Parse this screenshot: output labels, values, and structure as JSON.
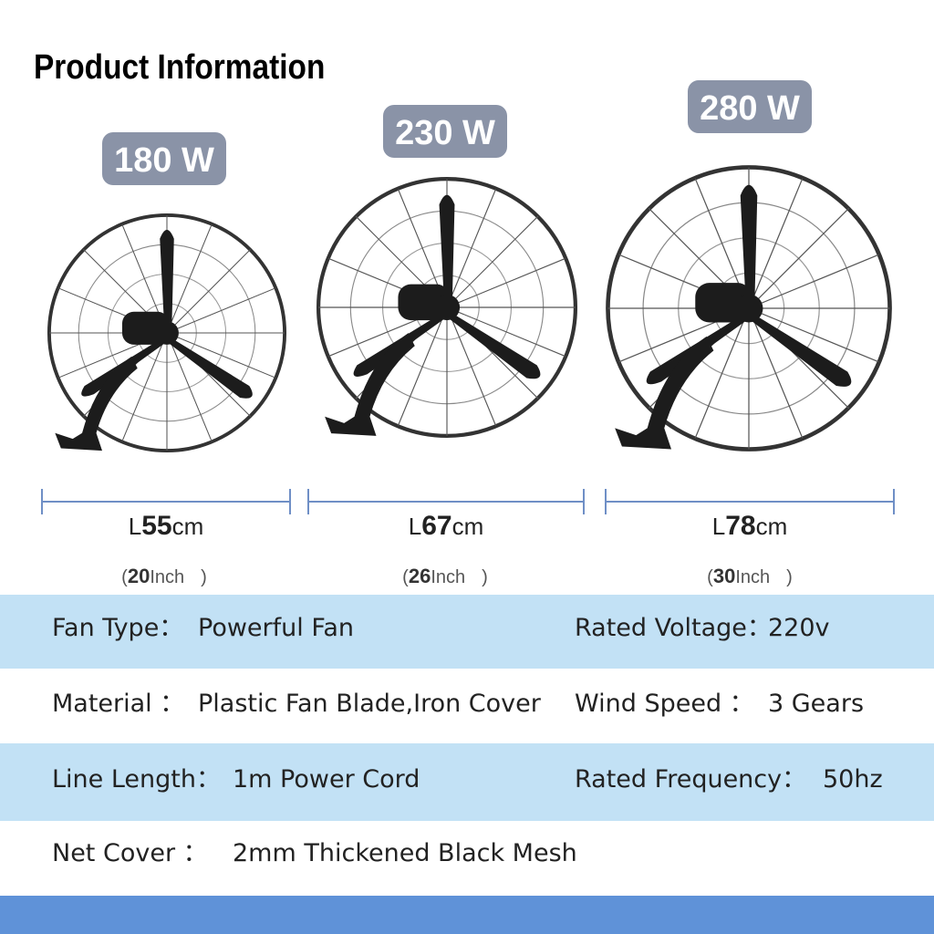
{
  "header": {
    "title": "Product Information"
  },
  "products": [
    {
      "power": "180 W",
      "length": {
        "prefix": "L",
        "size": "55",
        "unit": "cm"
      },
      "inch": {
        "open": "(",
        "size": "20",
        "unit": "Inch",
        "close": ")"
      }
    },
    {
      "power": "230 W",
      "length": {
        "prefix": "L",
        "size": "67",
        "unit": "cm"
      },
      "inch": {
        "open": "(",
        "size": "26",
        "unit": "Inch",
        "close": ")"
      }
    },
    {
      "power": "280 W",
      "length": {
        "prefix": "L",
        "size": "78",
        "unit": "cm"
      },
      "inch": {
        "open": "(",
        "size": "30",
        "unit": "Inch",
        "close": ")"
      }
    }
  ],
  "specs": [
    [
      {
        "label": "Fan Type：",
        "value": "Powerful Fan"
      },
      {
        "label": "Rated Voltage：",
        "value": "220v"
      }
    ],
    [
      {
        "label": "Material ：",
        "value": "Plastic Fan Blade,Iron Cover"
      },
      {
        "label": "Wind Speed ：",
        "value": "3 Gears"
      }
    ],
    [
      {
        "label": "Line Length：",
        "value": "1m Power Cord"
      },
      {
        "label": "Rated Frequency：",
        "value": "50hz"
      }
    ],
    [
      {
        "label": "Net Cover ：",
        "value": "2mm Thickened Black Mesh"
      }
    ]
  ]
}
